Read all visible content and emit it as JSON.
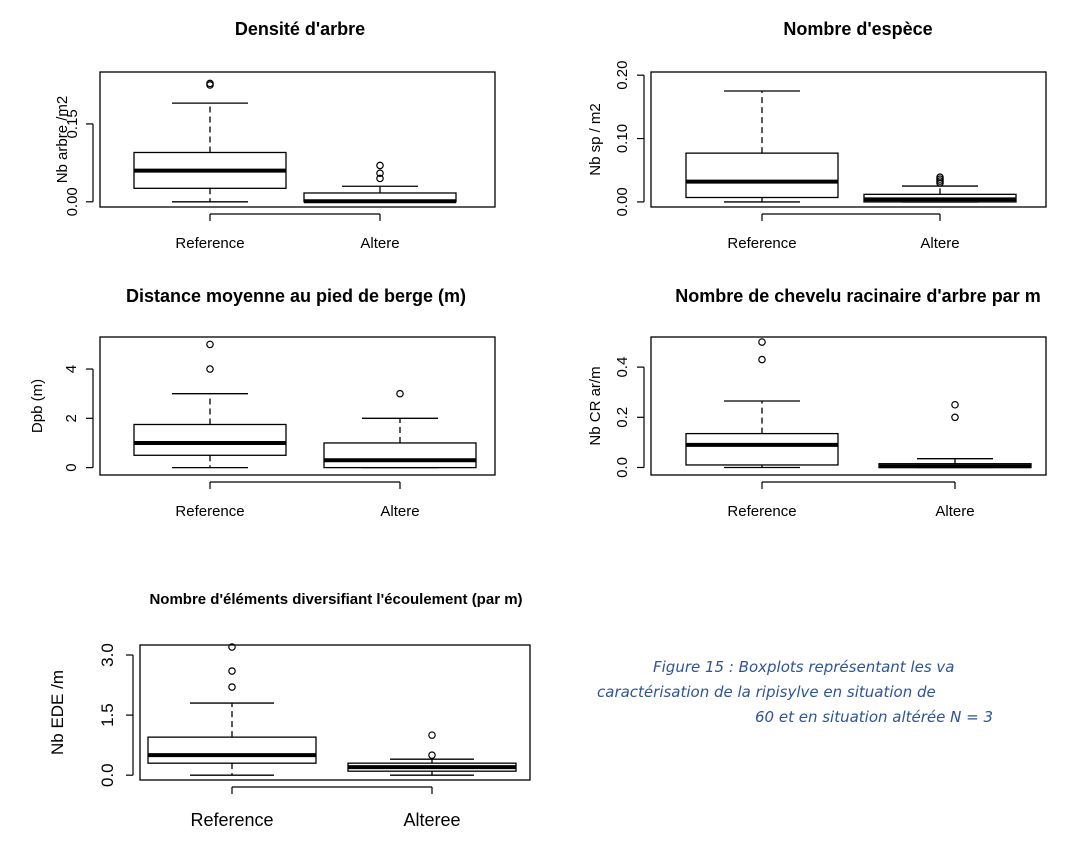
{
  "chart_data": [
    {
      "type": "boxplot",
      "title": "Densité d'arbre",
      "ylabel": "Nb arbre /m2",
      "yticks": [
        "0.00",
        "0.15"
      ],
      "ylim": [
        -0.01,
        0.25
      ],
      "categories": [
        "Reference",
        "Altere"
      ],
      "boxes": [
        {
          "label": "Reference",
          "whisker_low": 0.0,
          "q1": 0.026,
          "median": 0.06,
          "q3": 0.095,
          "whisker_high": 0.19,
          "outliers": [
            0.225,
            0.228
          ]
        },
        {
          "label": "Altere",
          "whisker_low": 0.0,
          "q1": 0.0,
          "median": 0.001,
          "q3": 0.017,
          "whisker_high": 0.03,
          "outliers": [
            0.045,
            0.055,
            0.07
          ]
        }
      ]
    },
    {
      "type": "boxplot",
      "title": "Nombre d'espèce",
      "ylabel": "Nb sp / m2",
      "yticks": [
        "0.00",
        "0.10",
        "0.20"
      ],
      "ylim": [
        -0.008,
        0.205
      ],
      "categories": [
        "Reference",
        "Altere"
      ],
      "boxes": [
        {
          "label": "Reference",
          "whisker_low": 0.0,
          "q1": 0.007,
          "median": 0.032,
          "q3": 0.077,
          "whisker_high": 0.175,
          "outliers": []
        },
        {
          "label": "Altere",
          "whisker_low": 0.0,
          "q1": 0.0,
          "median": 0.004,
          "q3": 0.012,
          "whisker_high": 0.025,
          "outliers": [
            0.03,
            0.033,
            0.036,
            0.039
          ]
        }
      ]
    },
    {
      "type": "boxplot",
      "title": "Distance moyenne au pied de berge (m)",
      "ylabel": "Dpb (m)",
      "yticks": [
        "0",
        "2",
        "4"
      ],
      "ylim": [
        -0.3,
        5.3
      ],
      "categories": [
        "Reference",
        "Altere"
      ],
      "boxes": [
        {
          "label": "Reference",
          "whisker_low": 0.0,
          "q1": 0.5,
          "median": 1.0,
          "q3": 1.75,
          "whisker_high": 3.0,
          "outliers": [
            4.0,
            5.0
          ]
        },
        {
          "label": "Altere",
          "whisker_low": 0.0,
          "q1": 0.0,
          "median": 0.3,
          "q3": 1.0,
          "whisker_high": 2.0,
          "outliers": [
            3.0
          ]
        }
      ]
    },
    {
      "type": "boxplot",
      "title": "Nombre de chevelu racinaire d'arbre par m",
      "ylabel": "Nb CR ar/m",
      "yticks": [
        "0.0",
        "0.2",
        "0.4"
      ],
      "ylim": [
        -0.03,
        0.52
      ],
      "categories": [
        "Reference",
        "Altere"
      ],
      "boxes": [
        {
          "label": "Reference",
          "whisker_low": 0.0,
          "q1": 0.01,
          "median": 0.09,
          "q3": 0.135,
          "whisker_high": 0.265,
          "outliers": [
            0.43,
            0.5
          ]
        },
        {
          "label": "Altere",
          "whisker_low": 0.0,
          "q1": 0.0,
          "median": 0.005,
          "q3": 0.015,
          "whisker_high": 0.035,
          "outliers": [
            0.2,
            0.25
          ]
        }
      ]
    },
    {
      "type": "boxplot",
      "title": "Nombre d'éléments diversifiant l'écoulement (par m)",
      "ylabel": "Nb EDE /m",
      "yticks": [
        "0.0",
        "1.5",
        "3.0"
      ],
      "ylim": [
        -0.12,
        3.25
      ],
      "categories": [
        "Reference",
        "Alteree"
      ],
      "boxes": [
        {
          "label": "Reference",
          "whisker_low": 0.0,
          "q1": 0.3,
          "median": 0.5,
          "q3": 0.95,
          "whisker_high": 1.8,
          "outliers": [
            2.2,
            2.6,
            3.2
          ]
        },
        {
          "label": "Alteree",
          "whisker_low": 0.0,
          "q1": 0.1,
          "median": 0.2,
          "q3": 0.3,
          "whisker_high": 0.4,
          "outliers": [
            0.5,
            1.0
          ]
        }
      ]
    }
  ],
  "caption": {
    "lines": [
      "Figure 15 :  Boxplots représentant les va",
      "caractérisation de la ripisylve en situation de",
      "60 et en situation altérée N = 3"
    ]
  }
}
